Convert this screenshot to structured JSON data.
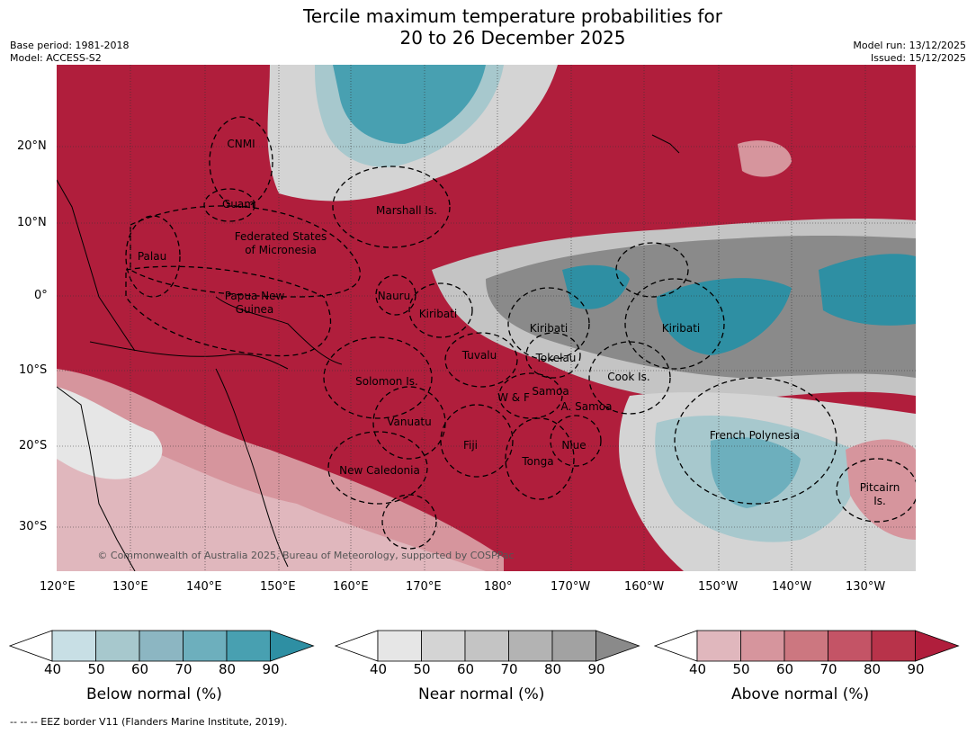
{
  "title_line1": "Tercile maximum temperature probabilities for",
  "title_line2": "20 to 26 December 2025",
  "base_period": "Base period: 1981-2018",
  "model": "Model: ACCESS-S2",
  "model_run": "Model run: 13/12/2025",
  "issued": "Issued: 15/12/2025",
  "copyright": "© Commonwealth of Australia 2025, Bureau of Meteorology, supported by COSPPac",
  "footer": "-- -- -- EEZ border V11 (Flanders Marine Institute, 2019).",
  "lat_labels": [
    "20°N",
    "10°N",
    "0°",
    "10°S",
    "20°S",
    "30°S"
  ],
  "lon_labels": [
    "120°E",
    "130°E",
    "140°E",
    "150°E",
    "160°E",
    "170°E",
    "180°",
    "170°W",
    "160°W",
    "150°W",
    "140°W",
    "130°W"
  ],
  "region_labels": [
    {
      "text": "CNMI"
    },
    {
      "text": "Guam"
    },
    {
      "text": "Marshall Is."
    },
    {
      "text": "Federated States"
    },
    {
      "text": "of Micronesia"
    },
    {
      "text": "Palau"
    },
    {
      "text": "Papua New"
    },
    {
      "text": "Guinea"
    },
    {
      "text": "Nauru"
    },
    {
      "text": "Kiribati"
    },
    {
      "text": "Kiribati"
    },
    {
      "text": "Kiribati"
    },
    {
      "text": "Tuvalu"
    },
    {
      "text": "Tokelau"
    },
    {
      "text": "Cook Is."
    },
    {
      "text": "Solomon Is."
    },
    {
      "text": "Samoa"
    },
    {
      "text": "W & F"
    },
    {
      "text": "A. Samoa"
    },
    {
      "text": "Vanuatu"
    },
    {
      "text": "Fiji"
    },
    {
      "text": "Niue"
    },
    {
      "text": "Tonga"
    },
    {
      "text": "French Polynesia"
    },
    {
      "text": "New Caledonia"
    },
    {
      "text": "Pitcairn"
    },
    {
      "text": "Is."
    }
  ],
  "colorbars": [
    {
      "label": "Below normal (%)",
      "ticks": [
        "40",
        "50",
        "60",
        "70",
        "80",
        "90"
      ],
      "colors": [
        "#ffffff",
        "#c8dfe5",
        "#a7c8cd",
        "#8cb6c2",
        "#6dafbd",
        "#48a0b1",
        "#2e8fa3"
      ]
    },
    {
      "label": "Near normal (%)",
      "ticks": [
        "40",
        "50",
        "60",
        "70",
        "80",
        "90"
      ],
      "colors": [
        "#ffffff",
        "#e6e6e6",
        "#d4d4d4",
        "#c4c4c4",
        "#b3b3b3",
        "#a2a2a2",
        "#8a8a8a"
      ]
    },
    {
      "label": "Above normal (%)",
      "ticks": [
        "40",
        "50",
        "60",
        "70",
        "80",
        "90"
      ],
      "colors": [
        "#ffffff",
        "#e0b7bd",
        "#d6959d",
        "#cc7780",
        "#c45466",
        "#b8334a",
        "#b01e3c"
      ]
    }
  ]
}
